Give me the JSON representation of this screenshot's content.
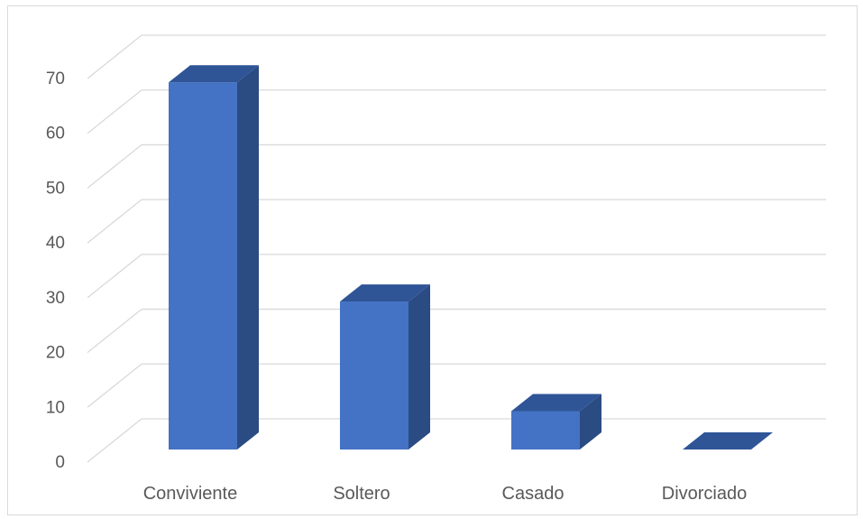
{
  "chart_data": {
    "type": "bar",
    "style": "3d-column",
    "categories": [
      "Conviviente",
      "Soltero",
      "Casado",
      "Divorciado"
    ],
    "values": [
      67,
      27,
      7,
      0
    ],
    "ylim": [
      0,
      70
    ],
    "yticks": [
      0,
      10,
      20,
      30,
      40,
      50,
      60,
      70
    ],
    "grid": true,
    "legend": "none",
    "colors": {
      "bar_front": "#4472c4",
      "bar_side": "#2b4b83",
      "bar_top": "#2f5597",
      "grid": "#d9d9d9",
      "text": "#595959"
    }
  }
}
